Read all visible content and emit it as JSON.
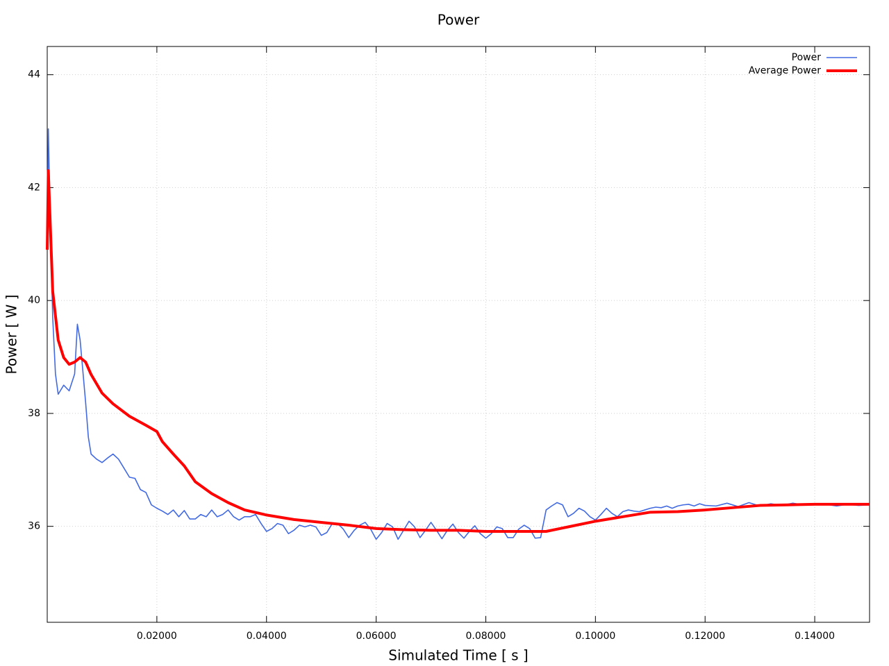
{
  "chart_data": {
    "type": "line",
    "title": "Power",
    "x_label": "Simulated Time [ s ]",
    "y_label": "Power [ W ]",
    "xlim": [
      0,
      0.15
    ],
    "ylim": [
      34.3,
      44.5
    ],
    "xticks": [
      {
        "value": 0.02,
        "label": "0.02000"
      },
      {
        "value": 0.04,
        "label": "0.04000"
      },
      {
        "value": 0.06,
        "label": "0.06000"
      },
      {
        "value": 0.08,
        "label": "0.08000"
      },
      {
        "value": 0.1,
        "label": "0.10000"
      },
      {
        "value": 0.12,
        "label": "0.12000"
      },
      {
        "value": 0.14,
        "label": "0.14000"
      }
    ],
    "yticks": [
      36,
      38,
      40,
      42,
      44
    ],
    "grid": true,
    "legend": "top-right",
    "series": [
      {
        "name": "Power",
        "color": "#4169e1",
        "x": [
          0,
          0.0002,
          0.0005,
          0.001,
          0.0015,
          0.002,
          0.003,
          0.004,
          0.005,
          0.0055,
          0.006,
          0.007,
          0.0075,
          0.008,
          0.009,
          0.01,
          0.011,
          0.012,
          0.013,
          0.014,
          0.015,
          0.016,
          0.017,
          0.018,
          0.019,
          0.02,
          0.021,
          0.022,
          0.023,
          0.024,
          0.025,
          0.026,
          0.027,
          0.028,
          0.029,
          0.03,
          0.031,
          0.032,
          0.033,
          0.034,
          0.035,
          0.036,
          0.037,
          0.038,
          0.039,
          0.04,
          0.041,
          0.042,
          0.043,
          0.044,
          0.045,
          0.046,
          0.047,
          0.048,
          0.049,
          0.05,
          0.051,
          0.052,
          0.053,
          0.054,
          0.055,
          0.056,
          0.057,
          0.058,
          0.059,
          0.06,
          0.061,
          0.062,
          0.063,
          0.064,
          0.065,
          0.066,
          0.067,
          0.068,
          0.069,
          0.07,
          0.071,
          0.072,
          0.073,
          0.074,
          0.075,
          0.076,
          0.077,
          0.078,
          0.079,
          0.08,
          0.081,
          0.082,
          0.083,
          0.084,
          0.085,
          0.086,
          0.087,
          0.088,
          0.089,
          0.09,
          0.091,
          0.092,
          0.093,
          0.094,
          0.095,
          0.096,
          0.097,
          0.098,
          0.099,
          0.1,
          0.101,
          0.102,
          0.103,
          0.104,
          0.105,
          0.106,
          0.107,
          0.108,
          0.109,
          0.11,
          0.111,
          0.112,
          0.113,
          0.114,
          0.115,
          0.116,
          0.117,
          0.118,
          0.119,
          0.12,
          0.122,
          0.124,
          0.126,
          0.128,
          0.13,
          0.132,
          0.134,
          0.136,
          0.138,
          0.14,
          0.142,
          0.144,
          0.146,
          0.148,
          0.15
        ],
        "values": [
          40.9,
          43.04,
          41.6,
          39.7,
          38.7,
          38.34,
          38.5,
          38.4,
          38.7,
          39.58,
          39.3,
          38.2,
          37.58,
          37.28,
          37.19,
          37.13,
          37.21,
          37.28,
          37.19,
          37.03,
          36.87,
          36.85,
          36.65,
          36.6,
          36.38,
          36.32,
          36.27,
          36.21,
          36.29,
          36.17,
          36.28,
          36.13,
          36.13,
          36.21,
          36.17,
          36.29,
          36.17,
          36.21,
          36.29,
          36.17,
          36.11,
          36.17,
          36.17,
          36.21,
          36.05,
          35.91,
          35.96,
          36.05,
          36.02,
          35.87,
          35.93,
          36.02,
          35.99,
          36.02,
          35.99,
          35.84,
          35.89,
          36.05,
          36.05,
          35.95,
          35.8,
          35.93,
          36.02,
          36.07,
          35.95,
          35.77,
          35.89,
          36.05,
          35.99,
          35.77,
          35.93,
          36.09,
          35.99,
          35.8,
          35.93,
          36.07,
          35.93,
          35.78,
          35.93,
          36.04,
          35.89,
          35.79,
          35.91,
          36.01,
          35.87,
          35.79,
          35.87,
          35.99,
          35.96,
          35.8,
          35.8,
          35.95,
          36.02,
          35.96,
          35.79,
          35.8,
          36.29,
          36.36,
          36.42,
          36.38,
          36.17,
          36.23,
          36.32,
          36.27,
          36.17,
          36.11,
          36.21,
          36.32,
          36.23,
          36.17,
          36.26,
          36.29,
          36.27,
          36.26,
          36.29,
          36.32,
          36.34,
          36.33,
          36.36,
          36.32,
          36.36,
          36.38,
          36.39,
          36.36,
          36.4,
          36.37,
          36.36,
          36.41,
          36.35,
          36.42,
          36.36,
          36.4,
          36.37,
          36.41,
          36.38,
          36.4,
          36.39,
          36.36,
          36.39,
          36.37,
          36.38
        ]
      },
      {
        "name": "Average Power",
        "color": "#ff0000",
        "x": [
          0,
          0.0002,
          0.001,
          0.002,
          0.003,
          0.004,
          0.005,
          0.006,
          0.007,
          0.008,
          0.01,
          0.012,
          0.015,
          0.018,
          0.02,
          0.021,
          0.023,
          0.025,
          0.027,
          0.03,
          0.033,
          0.036,
          0.04,
          0.045,
          0.05,
          0.055,
          0.06,
          0.065,
          0.07,
          0.075,
          0.08,
          0.085,
          0.09,
          0.091,
          0.095,
          0.1,
          0.105,
          0.11,
          0.115,
          0.12,
          0.125,
          0.13,
          0.135,
          0.14,
          0.145,
          0.15
        ],
        "values": [
          40.9,
          42.3,
          40.16,
          39.3,
          38.99,
          38.87,
          38.91,
          38.99,
          38.91,
          38.69,
          38.36,
          38.17,
          37.95,
          37.79,
          37.68,
          37.5,
          37.28,
          37.07,
          36.79,
          36.58,
          36.42,
          36.29,
          36.2,
          36.12,
          36.07,
          36.02,
          35.96,
          35.94,
          35.93,
          35.93,
          35.91,
          35.91,
          35.91,
          35.91,
          35.99,
          36.09,
          36.17,
          36.25,
          36.26,
          36.29,
          36.33,
          36.37,
          36.38,
          36.39,
          36.39,
          36.39
        ]
      }
    ]
  }
}
